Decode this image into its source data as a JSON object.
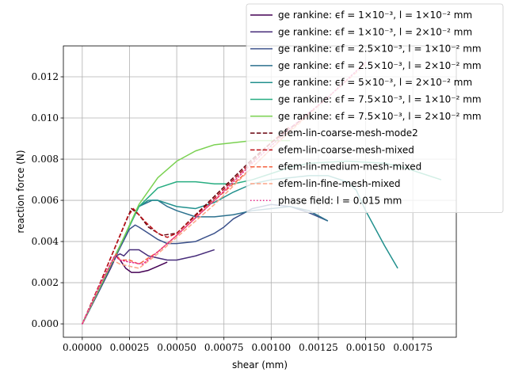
{
  "chart_data": {
    "type": "line",
    "xlabel": "shear (mm)",
    "ylabel": "reaction force (N)",
    "xlim": [
      -0.0001,
      0.00198
    ],
    "ylim": [
      -0.00065,
      0.0135
    ],
    "xticks": [
      0.0,
      0.00025,
      0.0005,
      0.00075,
      0.001,
      0.00125,
      0.0015,
      0.00175
    ],
    "xtick_labels": [
      "0.00000",
      "0.00025",
      "0.00050",
      "0.00075",
      "0.00100",
      "0.00125",
      "0.00150",
      "0.00175"
    ],
    "yticks": [
      0.0,
      0.002,
      0.004,
      0.006,
      0.008,
      0.01,
      0.012
    ],
    "ytick_labels": [
      "0.000",
      "0.002",
      "0.004",
      "0.006",
      "0.008",
      "0.010",
      "0.012"
    ],
    "grid": true,
    "legend_position": "top-right",
    "series": [
      {
        "name": "ge rankine: ϵf = 1×10⁻³, l = 1×10⁻² mm",
        "color": "#440154",
        "dash": "solid",
        "x": [
          0,
          5e-05,
          0.0001,
          0.00015,
          0.00018,
          0.0002,
          0.00023,
          0.00026,
          0.0003,
          0.00035,
          0.0004,
          0.00045
        ],
        "y": [
          0,
          0.0009,
          0.0018,
          0.0027,
          0.0033,
          0.0031,
          0.0027,
          0.0025,
          0.0025,
          0.0026,
          0.0028,
          0.003
        ]
      },
      {
        "name": "ge rankine: ϵf = 1×10⁻³, l = 2×10⁻² mm",
        "color": "#472c7a",
        "dash": "solid",
        "x": [
          0,
          0.0001,
          0.00018,
          0.0002,
          0.00022,
          0.00025,
          0.0003,
          0.00035,
          0.0004,
          0.00045,
          0.0005,
          0.0006,
          0.0007
        ],
        "y": [
          0,
          0.0018,
          0.0033,
          0.0034,
          0.0033,
          0.0036,
          0.0036,
          0.0033,
          0.0032,
          0.0031,
          0.0031,
          0.0033,
          0.0036
        ]
      },
      {
        "name": "ge rankine: ϵf = 2.5×10⁻³, l = 1×10⁻² mm",
        "color": "#3b518b",
        "dash": "solid",
        "x": [
          0,
          0.0001,
          0.0002,
          0.00025,
          0.00028,
          0.0003,
          0.00035,
          0.0004,
          0.00045,
          0.0005,
          0.0006,
          0.0007,
          0.00075,
          0.0008,
          0.0009,
          0.001,
          0.0011,
          0.0012,
          0.0013
        ],
        "y": [
          0,
          0.0018,
          0.0037,
          0.0046,
          0.0048,
          0.0047,
          0.0044,
          0.0041,
          0.0039,
          0.0039,
          0.004,
          0.0044,
          0.0047,
          0.0051,
          0.0056,
          0.0058,
          0.0057,
          0.0054,
          0.005
        ]
      },
      {
        "name": "ge rankine: ϵf = 2.5×10⁻³, l = 2×10⁻² mm",
        "color": "#2c718e",
        "dash": "solid",
        "x": [
          0,
          0.0001,
          0.0002,
          0.0003,
          0.00037,
          0.0004,
          0.00045,
          0.0005,
          0.0006,
          0.0007,
          0.0008,
          0.0009,
          0.001,
          0.0011,
          0.0012,
          0.0013
        ],
        "y": [
          0,
          0.0019,
          0.0038,
          0.0057,
          0.006,
          0.006,
          0.0057,
          0.0055,
          0.0052,
          0.0052,
          0.0053,
          0.0055,
          0.0056,
          0.0057,
          0.0055,
          0.005
        ]
      },
      {
        "name": "ge rankine: ϵf = 5×10⁻³, l = 2×10⁻² mm",
        "color": "#21908d",
        "dash": "solid",
        "x": [
          0,
          0.0001,
          0.0002,
          0.0003,
          0.00035,
          0.0004,
          0.0005,
          0.0006,
          0.0007,
          0.0008,
          0.0009,
          0.001,
          0.0011,
          0.0012,
          0.0013,
          0.0014,
          0.00145,
          0.0015,
          0.0016,
          0.00167
        ],
        "y": [
          0,
          0.0019,
          0.0038,
          0.0057,
          0.006,
          0.006,
          0.0057,
          0.0056,
          0.0059,
          0.0064,
          0.0068,
          0.007,
          0.0071,
          0.0072,
          0.0072,
          0.0069,
          0.0065,
          0.0055,
          0.0038,
          0.0027
        ]
      },
      {
        "name": "ge rankine: ϵf = 7.5×10⁻³, l = 1×10⁻² mm",
        "color": "#27ad81",
        "dash": "solid",
        "x": [
          0,
          0.0001,
          0.0002,
          0.0003,
          0.0004,
          0.0005,
          0.0006,
          0.0007,
          0.0008,
          0.0009,
          0.001,
          0.0011,
          0.0012,
          0.0014,
          0.0016,
          0.0017,
          0.0018,
          0.0019
        ],
        "y": [
          0,
          0.0019,
          0.0038,
          0.0057,
          0.0066,
          0.0069,
          0.0069,
          0.0068,
          0.0068,
          0.007,
          0.0073,
          0.0076,
          0.0078,
          0.0079,
          0.0078,
          0.0076,
          0.0073,
          0.007
        ]
      },
      {
        "name": "ge rankine: ϵf = 7.5×10⁻³, l = 2×10⁻² mm",
        "color": "#7ad151",
        "dash": "solid",
        "x": [
          0,
          0.0001,
          0.0002,
          0.0003,
          0.0004,
          0.0005,
          0.0006,
          0.0007,
          0.0008,
          0.0009,
          0.001,
          0.0011
        ],
        "y": [
          0,
          0.0019,
          0.0038,
          0.0058,
          0.0071,
          0.0079,
          0.0084,
          0.0087,
          0.0088,
          0.0089,
          0.0089,
          0.0089
        ]
      },
      {
        "name": "efem-lin-coarse-mesh-mode2",
        "color": "#67000d",
        "dash": "dash",
        "x": [
          0,
          0.0001,
          0.00026,
          0.0003,
          0.00035,
          0.00042,
          0.0005,
          0.0007,
          0.0009,
          0.001,
          0.0011,
          0.0012,
          0.0013
        ],
        "y": [
          0,
          0.0021,
          0.0056,
          0.0053,
          0.0047,
          0.0043,
          0.0044,
          0.0062,
          0.008,
          0.0088,
          0.0095,
          0.0102,
          0.011
        ]
      },
      {
        "name": "efem-lin-coarse-mesh-mixed",
        "color": "#bc141a",
        "dash": "dash",
        "x": [
          0,
          0.0001,
          0.00024,
          0.00027,
          0.0003,
          0.00034,
          0.0004,
          0.00045,
          0.0005,
          0.0007,
          0.0009,
          0.001,
          0.0011
        ],
        "y": [
          0,
          0.0021,
          0.0052,
          0.0056,
          0.0053,
          0.0049,
          0.0044,
          0.0042,
          0.0044,
          0.0061,
          0.0079,
          0.0088,
          0.0096
        ]
      },
      {
        "name": "efem-lin-medium-mesh-mixed",
        "color": "#f4613f",
        "dash": "dash",
        "x": [
          0,
          0.0001,
          0.00018,
          0.0002,
          0.00025,
          0.0003,
          0.0004,
          0.0005,
          0.0007,
          0.0009,
          0.0011,
          0.0012
        ],
        "y": [
          0,
          0.002,
          0.0034,
          0.0031,
          0.0031,
          0.0029,
          0.0035,
          0.0043,
          0.006,
          0.0076,
          0.0094,
          0.0102
        ]
      },
      {
        "name": "efem-lin-fine-mesh-mixed",
        "color": "#fca487",
        "dash": "dash",
        "x": [
          0,
          0.0001,
          0.00016,
          0.0002,
          0.00025,
          0.0003,
          0.0004,
          0.0005,
          0.0007,
          0.001,
          0.0013,
          0.0015
        ],
        "y": [
          0,
          0.002,
          0.0031,
          0.0029,
          0.0028,
          0.0027,
          0.0034,
          0.0042,
          0.0058,
          0.0085,
          0.011,
          0.0126
        ]
      },
      {
        "name": "phase field: l = 0.015 mm",
        "color": "#e7298a",
        "dash": "dot",
        "x": [
          0,
          0.0001,
          0.00017,
          0.0002,
          0.00025,
          0.00032,
          0.0004,
          0.0005,
          0.0007,
          0.0009,
          0.0011,
          0.0013,
          0.0015
        ],
        "y": [
          0,
          0.002,
          0.0033,
          0.0031,
          0.003,
          0.0029,
          0.0035,
          0.0043,
          0.006,
          0.0078,
          0.0095,
          0.011,
          0.0127
        ]
      }
    ]
  }
}
